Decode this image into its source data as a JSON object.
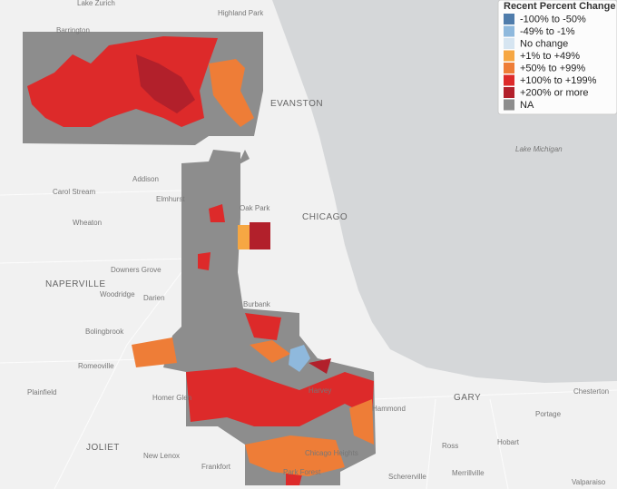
{
  "legend": {
    "title": "Recent Percent Change",
    "items": [
      {
        "label": "-100% to -50%",
        "color": "#4f7cab"
      },
      {
        "label": "-49% to -1%",
        "color": "#8fb9dd"
      },
      {
        "label": "No change",
        "color": "#d6e5f1"
      },
      {
        "label": "+1% to +49%",
        "color": "#f6a743"
      },
      {
        "label": "+50% to +99%",
        "color": "#ee7d37"
      },
      {
        "label": "+100% to +199%",
        "color": "#dd2a2a"
      },
      {
        "label": "+200% or more",
        "color": "#b2202b"
      },
      {
        "label": "NA",
        "color": "#8d8d8d"
      }
    ]
  },
  "places": [
    "Lake Zurich",
    "Highland Park",
    "Barrington",
    "EVANSTON",
    "CHICAGO",
    "Lake Michigan",
    "Carol Stream",
    "Addison",
    "Elmhurst",
    "Wheaton",
    "Downers Grove",
    "NAPERVILLE",
    "Woodridge",
    "Darien",
    "Bolingbrook",
    "Romeoville",
    "Plainfield",
    "Homer Glen",
    "JOLIET",
    "New Lenox",
    "Frankfort",
    "Oak Park",
    "Burbank",
    "Harvey",
    "Hammond",
    "GARY",
    "Portage",
    "Chesterton",
    "Hobart",
    "Ross",
    "Merrillville",
    "Schererville",
    "Valparaiso",
    "Chicago Heights",
    "Park Forest"
  ]
}
